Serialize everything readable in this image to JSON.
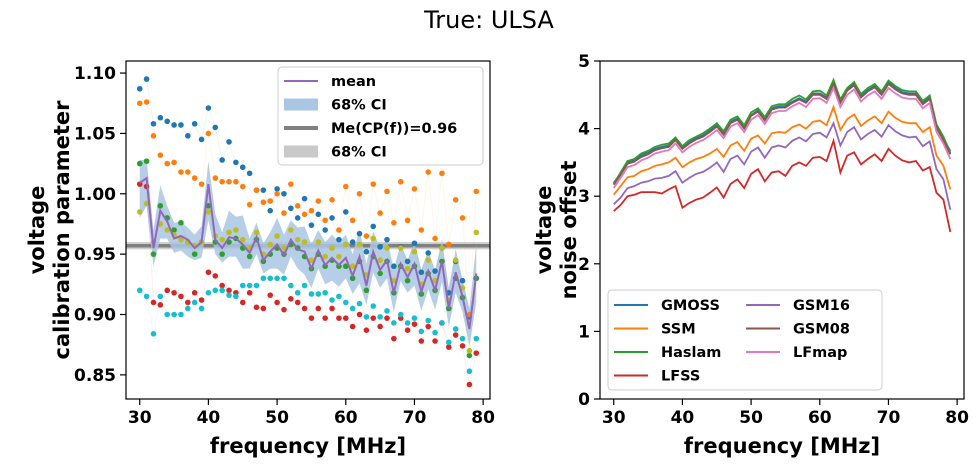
{
  "figure_title": "True: ULSA",
  "colors": {
    "tab_blue": "#1f77b4",
    "tab_orange": "#ff7f0e",
    "tab_green": "#2ca02c",
    "tab_red": "#d62728",
    "tab_purple": "#9467bd",
    "tab_brown": "#8c564b",
    "tab_pink": "#e377c2",
    "tab_olive": "#bcbd22",
    "tab_cyan": "#17becf",
    "ci_band": "#a9c6e3",
    "me_line": "#808080",
    "me_band": "#c9c9c9"
  },
  "chart_data": [
    {
      "type": "scatter",
      "xlabel": "frequency [MHz]",
      "ylabel": [
        "voltage",
        "calibration parameter"
      ],
      "xlim": [
        28,
        81
      ],
      "ylim": [
        0.83,
        1.11
      ],
      "xticks": [
        "30",
        "40",
        "50",
        "60",
        "70",
        "80"
      ],
      "yticks": [
        "0.85",
        "0.90",
        "0.95",
        "1.00",
        "1.05",
        "1.10"
      ],
      "x": [
        30,
        31,
        32,
        33,
        34,
        35,
        36,
        37,
        38,
        39,
        40,
        41,
        42,
        43,
        44,
        45,
        46,
        47,
        48,
        49,
        50,
        51,
        52,
        53,
        54,
        55,
        56,
        57,
        58,
        59,
        60,
        61,
        62,
        63,
        64,
        65,
        66,
        67,
        68,
        69,
        70,
        71,
        72,
        73,
        74,
        75,
        76,
        77,
        78,
        79
      ],
      "legend_position": "upper right",
      "legend": [
        {
          "label": "mean",
          "kind": "line",
          "color": "#9467bd"
        },
        {
          "label": "68% CI",
          "kind": "patch",
          "color": "#a9c6e3"
        },
        {
          "label": "Me(CP(f))=0.96",
          "kind": "line",
          "color": "#808080"
        },
        {
          "label": "68% CI",
          "kind": "patch",
          "color": "#c9c9c9"
        }
      ],
      "median": {
        "value": 0.957,
        "ci": [
          0.954,
          0.96
        ]
      },
      "mean": [
        1.009,
        1.013,
        0.955,
        0.986,
        0.977,
        0.963,
        0.965,
        0.962,
        0.955,
        0.96,
        1.008,
        0.962,
        0.955,
        0.964,
        0.963,
        0.958,
        0.951,
        0.964,
        0.945,
        0.952,
        0.958,
        0.949,
        0.962,
        0.954,
        0.952,
        0.938,
        0.953,
        0.941,
        0.947,
        0.941,
        0.947,
        0.932,
        0.948,
        0.924,
        0.952,
        0.937,
        0.945,
        0.918,
        0.942,
        0.931,
        0.942,
        0.919,
        0.936,
        0.92,
        0.944,
        0.905,
        0.935,
        0.915,
        0.888,
        0.934
      ],
      "ci_lower": [
        0.98,
        0.99,
        0.94,
        0.963,
        0.963,
        0.951,
        0.953,
        0.948,
        0.945,
        0.947,
        0.978,
        0.95,
        0.943,
        0.948,
        0.948,
        0.938,
        0.938,
        0.95,
        0.934,
        0.938,
        0.938,
        0.933,
        0.948,
        0.938,
        0.933,
        0.922,
        0.938,
        0.925,
        0.928,
        0.923,
        0.93,
        0.917,
        0.926,
        0.908,
        0.935,
        0.922,
        0.93,
        0.902,
        0.928,
        0.918,
        0.924,
        0.903,
        0.921,
        0.904,
        0.927,
        0.89,
        0.918,
        0.902,
        0.874,
        0.91
      ],
      "ci_upper": [
        1.028,
        1.028,
        0.97,
        1.007,
        0.99,
        0.976,
        0.977,
        0.972,
        0.966,
        0.973,
        1.027,
        0.983,
        0.968,
        0.986,
        0.981,
        0.982,
        0.963,
        0.976,
        0.959,
        0.968,
        0.98,
        0.966,
        0.978,
        0.972,
        0.973,
        0.958,
        0.97,
        0.96,
        0.966,
        0.96,
        0.966,
        0.95,
        0.97,
        0.942,
        0.969,
        0.955,
        0.962,
        0.937,
        0.958,
        0.945,
        0.96,
        0.937,
        0.953,
        0.936,
        0.962,
        0.922,
        0.954,
        0.929,
        0.905,
        0.958
      ],
      "series": [
        {
          "color": "#1f77b4",
          "values": [
            1.087,
            1.095,
            1.058,
            1.063,
            1.06,
            1.057,
            1.057,
            1.048,
            1.058,
            1.045,
            1.071,
            1.055,
            1.028,
            1.043,
            1.026,
            1.022,
            1.017,
            1.003,
            1.003,
            0.986,
            1.004,
            1.0,
            0.988,
            0.98,
            0.996,
            0.974,
            0.983,
            0.97,
            0.98,
            0.962,
            0.985,
            0.96,
            0.967,
            0.952,
            0.973,
            0.956,
            0.962,
            0.94,
            0.956,
            0.944,
            0.959,
            0.935,
            0.951,
            0.936,
            0.955,
            0.918,
            0.944,
            0.928,
            0.898,
            0.93
          ]
        },
        {
          "color": "#ff7f0e",
          "values": [
            1.075,
            1.076,
            1.048,
            1.032,
            1.025,
            1.026,
            1.018,
            1.018,
            1.013,
            1.008,
            1.05,
            1.013,
            1.01,
            1.01,
            1.01,
            1.006,
            0.991,
            1.003,
            0.993,
            0.994,
            1.0,
            0.984,
            1.008,
            0.99,
            0.983,
            0.986,
            0.994,
            0.978,
            0.995,
            0.97,
            1.006,
            0.978,
            1.0,
            0.965,
            1.008,
            0.984,
            1.002,
            0.976,
            1.01,
            0.978,
            1.004,
            0.97,
            1.018,
            0.963,
            1.017,
            0.958,
            0.995,
            0.98,
            0.9,
            1.002
          ]
        },
        {
          "color": "#2ca02c",
          "values": [
            1.025,
            1.027,
            0.95,
            0.99,
            0.98,
            0.97,
            0.976,
            0.96,
            0.95,
            0.96,
            0.99,
            0.96,
            0.95,
            0.96,
            0.963,
            0.955,
            0.948,
            0.962,
            0.944,
            0.95,
            0.955,
            0.95,
            0.958,
            0.955,
            0.948,
            0.938,
            0.95,
            0.94,
            0.945,
            0.94,
            0.94,
            0.93,
            0.944,
            0.92,
            0.948,
            0.934,
            0.944,
            0.918,
            0.94,
            0.928,
            0.94,
            0.917,
            0.934,
            0.92,
            0.944,
            0.905,
            0.93,
            0.914,
            0.866,
            0.93
          ]
        },
        {
          "color": "#d62728",
          "values": [
            1.008,
            1.006,
            0.91,
            0.908,
            0.92,
            0.918,
            0.915,
            0.91,
            0.918,
            0.912,
            0.935,
            0.932,
            0.924,
            0.92,
            0.918,
            0.91,
            0.918,
            0.906,
            0.905,
            0.916,
            0.91,
            0.904,
            0.913,
            0.91,
            0.905,
            0.897,
            0.905,
            0.897,
            0.905,
            0.897,
            0.897,
            0.89,
            0.9,
            0.887,
            0.897,
            0.89,
            0.897,
            0.88,
            0.897,
            0.887,
            0.892,
            0.878,
            0.89,
            0.878,
            0.893,
            0.873,
            0.883,
            0.874,
            0.842,
            0.868
          ]
        },
        {
          "color": "#17becf",
          "values": [
            0.92,
            0.915,
            0.884,
            0.915,
            0.9,
            0.9,
            0.9,
            0.905,
            0.91,
            0.905,
            0.918,
            0.92,
            0.92,
            0.916,
            0.915,
            0.924,
            0.924,
            0.924,
            0.93,
            0.93,
            0.93,
            0.93,
            0.924,
            0.918,
            0.924,
            0.917,
            0.917,
            0.918,
            0.912,
            0.915,
            0.91,
            0.905,
            0.909,
            0.898,
            0.907,
            0.898,
            0.903,
            0.893,
            0.9,
            0.893,
            0.897,
            0.886,
            0.895,
            0.885,
            0.893,
            0.877,
            0.888,
            0.88,
            0.853,
            0.88
          ]
        },
        {
          "color": "#bcbd22",
          "values": [
            0.985,
            0.992,
            0.96,
            0.975,
            0.97,
            0.966,
            0.962,
            0.96,
            0.957,
            0.96,
            0.985,
            0.965,
            0.962,
            0.968,
            0.97,
            0.962,
            0.955,
            0.968,
            0.95,
            0.958,
            0.965,
            0.955,
            0.97,
            0.962,
            0.96,
            0.945,
            0.96,
            0.948,
            0.955,
            0.948,
            0.958,
            0.94,
            0.958,
            0.933,
            0.963,
            0.945,
            0.955,
            0.928,
            0.955,
            0.938,
            0.952,
            0.925,
            0.945,
            0.928,
            0.955,
            0.912,
            0.945,
            0.922,
            0.87,
            0.968
          ]
        }
      ]
    },
    {
      "type": "line",
      "xlabel": "frequency [MHz]",
      "ylabel": [
        "voltage",
        "noise offset"
      ],
      "xlim": [
        28,
        81
      ],
      "ylim": [
        0,
        5
      ],
      "xticks": [
        "30",
        "40",
        "50",
        "60",
        "70",
        "80"
      ],
      "yticks": [
        "0",
        "1",
        "2",
        "3",
        "4",
        "5"
      ],
      "x": [
        30,
        31,
        32,
        33,
        34,
        35,
        36,
        37,
        38,
        39,
        40,
        41,
        42,
        43,
        44,
        45,
        46,
        47,
        48,
        49,
        50,
        51,
        52,
        53,
        54,
        55,
        56,
        57,
        58,
        59,
        60,
        61,
        62,
        63,
        64,
        65,
        66,
        67,
        68,
        69,
        70,
        71,
        72,
        73,
        74,
        75,
        76,
        77,
        78,
        79
      ],
      "legend_position": "lower left",
      "series": [
        {
          "name": "GMOSS",
          "color": "#1f77b4",
          "values": [
            3.2,
            3.33,
            3.5,
            3.53,
            3.6,
            3.65,
            3.7,
            3.73,
            3.75,
            3.85,
            3.72,
            3.8,
            3.86,
            3.9,
            3.97,
            4.05,
            3.93,
            4.1,
            4.15,
            4.02,
            4.2,
            4.27,
            4.14,
            4.3,
            4.33,
            4.33,
            4.4,
            4.45,
            4.4,
            4.52,
            4.52,
            4.46,
            4.68,
            4.4,
            4.58,
            4.66,
            4.48,
            4.57,
            4.63,
            4.52,
            4.68,
            4.6,
            4.54,
            4.52,
            4.52,
            4.38,
            4.46,
            4.03,
            3.85,
            3.67
          ]
        },
        {
          "name": "SSM",
          "color": "#ff7f0e",
          "values": [
            3.02,
            3.15,
            3.28,
            3.3,
            3.37,
            3.4,
            3.45,
            3.47,
            3.5,
            3.57,
            3.43,
            3.5,
            3.55,
            3.58,
            3.63,
            3.7,
            3.58,
            3.75,
            3.8,
            3.67,
            3.85,
            3.9,
            3.78,
            3.93,
            3.95,
            3.94,
            4.02,
            4.06,
            4.0,
            4.1,
            4.12,
            4.05,
            4.32,
            3.98,
            4.14,
            4.21,
            4.04,
            4.12,
            4.18,
            4.08,
            4.25,
            4.16,
            4.1,
            4.08,
            4.08,
            3.95,
            4.02,
            3.6,
            3.45,
            3.1
          ]
        },
        {
          "name": "Haslam",
          "color": "#2ca02c",
          "values": [
            3.18,
            3.35,
            3.52,
            3.55,
            3.63,
            3.67,
            3.73,
            3.76,
            3.78,
            3.87,
            3.74,
            3.83,
            3.88,
            3.93,
            4.0,
            4.08,
            3.96,
            4.13,
            4.18,
            4.05,
            4.24,
            4.3,
            4.17,
            4.33,
            4.36,
            4.36,
            4.44,
            4.49,
            4.43,
            4.55,
            4.56,
            4.49,
            4.72,
            4.43,
            4.6,
            4.69,
            4.51,
            4.6,
            4.66,
            4.55,
            4.71,
            4.63,
            4.57,
            4.55,
            4.55,
            4.41,
            4.49,
            4.06,
            3.88,
            3.64
          ]
        },
        {
          "name": "LFSS",
          "color": "#d62728",
          "values": [
            2.78,
            2.87,
            3.0,
            3.02,
            3.06,
            3.06,
            3.06,
            3.04,
            3.1,
            3.15,
            2.83,
            2.9,
            2.95,
            2.98,
            3.05,
            3.13,
            2.98,
            3.18,
            3.25,
            3.12,
            3.33,
            3.4,
            3.22,
            3.35,
            3.37,
            3.3,
            3.45,
            3.5,
            3.45,
            3.57,
            3.58,
            3.52,
            3.82,
            3.35,
            3.6,
            3.65,
            3.47,
            3.55,
            3.62,
            3.52,
            3.7,
            3.6,
            3.53,
            3.5,
            3.52,
            3.38,
            3.43,
            3.05,
            2.95,
            2.47
          ]
        },
        {
          "name": "GSM16",
          "color": "#9467bd",
          "values": [
            2.88,
            2.98,
            3.12,
            3.15,
            3.2,
            3.22,
            3.26,
            3.27,
            3.3,
            3.37,
            3.2,
            3.27,
            3.33,
            3.36,
            3.42,
            3.5,
            3.36,
            3.55,
            3.6,
            3.47,
            3.66,
            3.72,
            3.57,
            3.72,
            3.75,
            3.72,
            3.82,
            3.87,
            3.81,
            3.92,
            3.94,
            3.87,
            4.08,
            3.75,
            3.95,
            4.02,
            3.84,
            3.92,
            3.98,
            3.88,
            4.05,
            3.96,
            3.9,
            3.87,
            3.88,
            3.74,
            3.81,
            3.4,
            3.25,
            2.8
          ]
        },
        {
          "name": "GSM08",
          "color": "#8c564b",
          "values": [
            3.17,
            3.32,
            3.48,
            3.51,
            3.58,
            3.62,
            3.68,
            3.71,
            3.73,
            3.83,
            3.7,
            3.78,
            3.84,
            3.88,
            3.95,
            4.03,
            3.91,
            4.08,
            4.13,
            4.0,
            4.19,
            4.25,
            4.12,
            4.28,
            4.31,
            4.31,
            4.38,
            4.43,
            4.38,
            4.5,
            4.5,
            4.44,
            4.66,
            4.38,
            4.56,
            4.64,
            4.46,
            4.55,
            4.61,
            4.5,
            4.66,
            4.58,
            4.52,
            4.5,
            4.5,
            4.36,
            4.44,
            4.01,
            3.83,
            3.62
          ]
        },
        {
          "name": "LFmap",
          "color": "#e377c2",
          "values": [
            3.12,
            3.27,
            3.43,
            3.46,
            3.53,
            3.57,
            3.63,
            3.66,
            3.68,
            3.78,
            3.65,
            3.73,
            3.79,
            3.83,
            3.9,
            3.98,
            3.86,
            4.03,
            4.08,
            3.95,
            4.13,
            4.2,
            4.07,
            4.23,
            4.26,
            4.26,
            4.33,
            4.38,
            4.32,
            4.44,
            4.45,
            4.38,
            4.6,
            4.32,
            4.5,
            4.58,
            4.4,
            4.49,
            4.55,
            4.44,
            4.6,
            4.52,
            4.46,
            4.44,
            4.44,
            4.3,
            4.38,
            3.95,
            3.78,
            3.55
          ]
        }
      ]
    }
  ]
}
